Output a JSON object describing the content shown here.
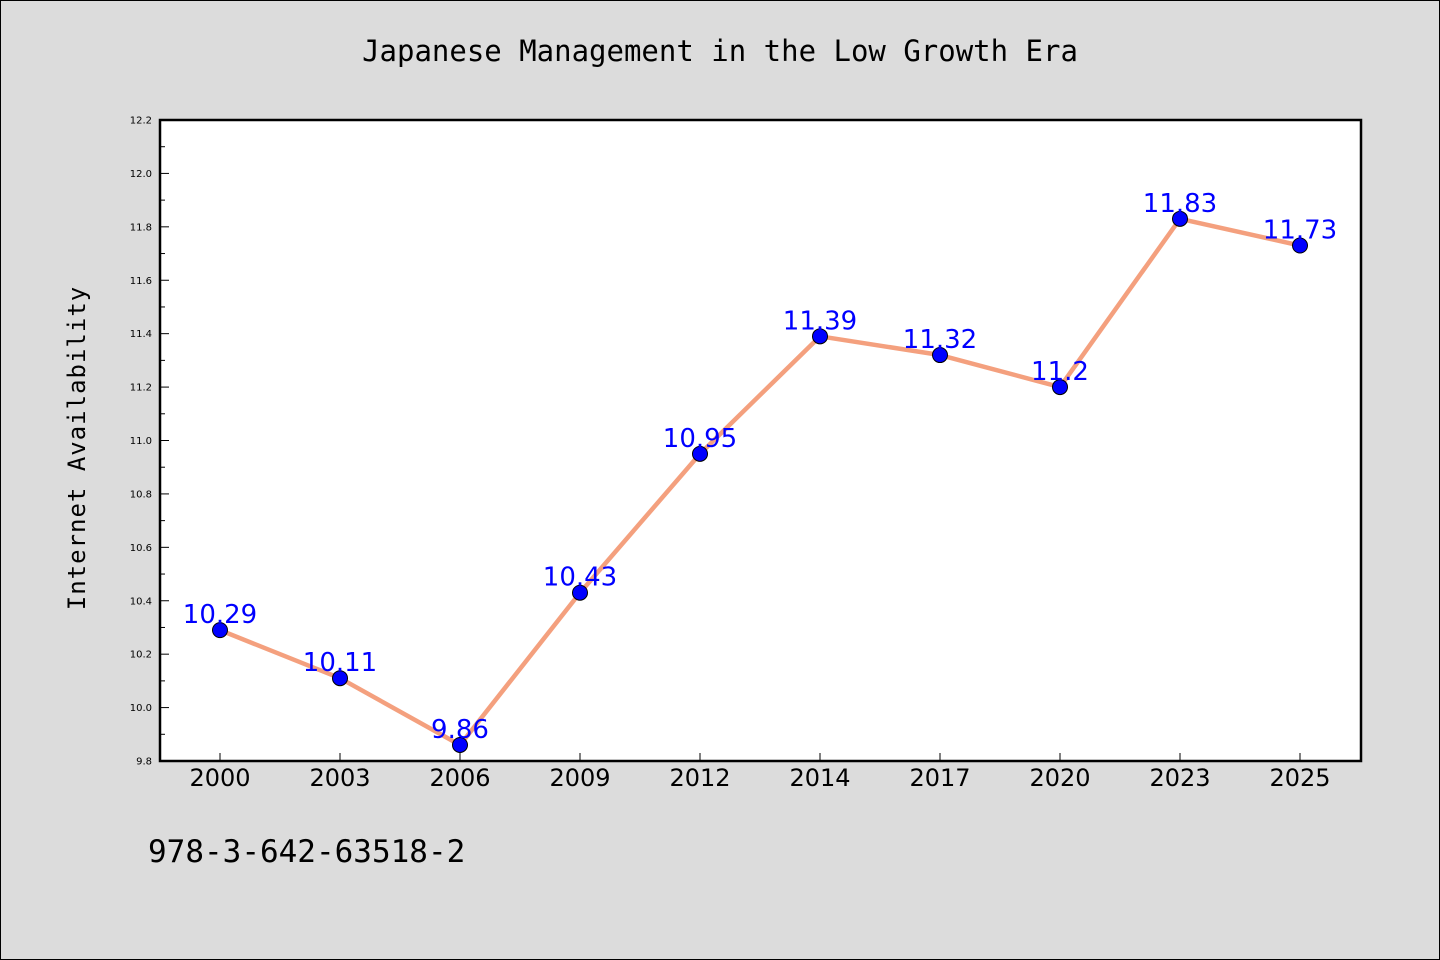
{
  "chart_data": {
    "type": "line",
    "title": "Japanese Management in the Low Growth Era",
    "ylabel": "Internet Availability",
    "xlabel": "",
    "categories": [
      "2000",
      "2003",
      "2006",
      "2009",
      "2012",
      "2014",
      "2017",
      "2020",
      "2023",
      "2025"
    ],
    "series": [
      {
        "values": [
          10.29,
          10.11,
          9.86,
          10.43,
          10.95,
          11.39,
          11.32,
          11.2,
          11.83,
          11.73
        ],
        "data_labels": [
          "10.29",
          "10.11",
          "9.86",
          "10.43",
          "10.95",
          "11.39",
          "11.32",
          "11.2",
          "11.83",
          "11.73"
        ],
        "line_color": "#f4a07e",
        "marker_color": "#0000ff",
        "label_color": "#0000ff"
      }
    ],
    "ylim": [
      9.8,
      12.2
    ],
    "yticks": [
      "9.8",
      "10.0",
      "10.2",
      "10.4",
      "10.6",
      "10.8",
      "11.0",
      "11.2",
      "11.4",
      "11.6",
      "11.8",
      "12.0",
      "12.2"
    ],
    "grid": false,
    "legend": "none"
  },
  "footer": {
    "text": "978-3-642-63518-2"
  },
  "colors": {
    "background": "#dcdcdc",
    "plot_background": "#ffffff"
  }
}
